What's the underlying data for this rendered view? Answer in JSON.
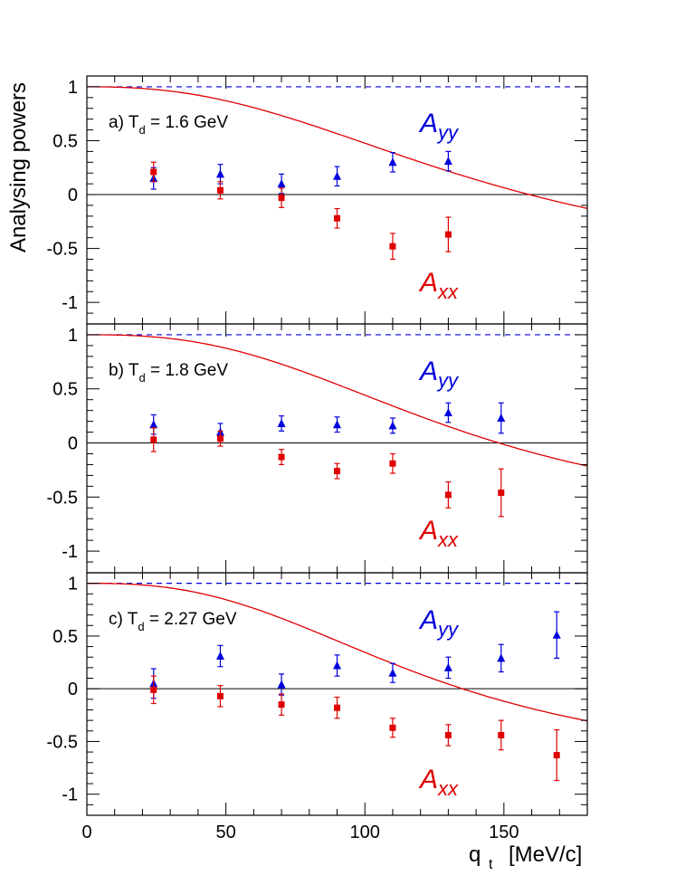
{
  "chart_data": {
    "type": "scatter",
    "xlabel": "q",
    "xlabel_sub": "t",
    "xlabel_unit": "[MeV/c]",
    "ylabel": "Analysing powers",
    "xlim": [
      0,
      180
    ],
    "ylim": [
      -1.2,
      1.1
    ],
    "x_ticks": [
      0,
      50,
      100,
      150
    ],
    "y_ticks": [
      1,
      0.5,
      0,
      -0.5,
      -1
    ],
    "y_tick_labels": [
      "1",
      "0.5",
      "0",
      "-0.5",
      "-1"
    ],
    "colors": {
      "Ayy": "#0000dd",
      "Axx": "#e00000",
      "frame": "#000000"
    },
    "panels": [
      {
        "label_prefix": "a) T",
        "label_sub": "d",
        "label_suffix": " = 1.6 GeV",
        "series": [
          {
            "name": "A",
            "sub": "yy",
            "marker": "triangle",
            "color": "#0000dd",
            "x": [
              24,
              48,
              70,
              90,
              110,
              130
            ],
            "y": [
              0.15,
              0.19,
              0.1,
              0.17,
              0.3,
              0.31
            ],
            "err": [
              0.1,
              0.09,
              0.09,
              0.09,
              0.09,
              0.09
            ]
          },
          {
            "name": "A",
            "sub": "xx",
            "marker": "square",
            "color": "#e00000",
            "x": [
              24,
              48,
              70,
              90,
              110,
              130
            ],
            "y": [
              0.21,
              0.04,
              -0.03,
              -0.22,
              -0.48,
              -0.37
            ],
            "err": [
              0.09,
              0.08,
              0.09,
              0.09,
              0.12,
              0.16
            ]
          }
        ],
        "curve_nominal": {
          "q0": 145,
          "exp": 2.4,
          "color": "#e00000"
        },
        "dashed_line": {
          "y": 1.0,
          "color": "#0000dd"
        }
      },
      {
        "label_prefix": "b) T",
        "label_sub": "d",
        "label_suffix": " = 1.8 GeV",
        "series": [
          {
            "name": "A",
            "sub": "yy",
            "marker": "triangle",
            "color": "#0000dd",
            "x": [
              24,
              48,
              70,
              90,
              110,
              130,
              149
            ],
            "y": [
              0.17,
              0.1,
              0.18,
              0.17,
              0.16,
              0.28,
              0.23
            ],
            "err": [
              0.09,
              0.08,
              0.07,
              0.07,
              0.07,
              0.09,
              0.14
            ]
          },
          {
            "name": "A",
            "sub": "xx",
            "marker": "square",
            "color": "#e00000",
            "x": [
              24,
              48,
              70,
              90,
              110,
              130,
              149
            ],
            "y": [
              0.03,
              0.04,
              -0.13,
              -0.26,
              -0.19,
              -0.48,
              -0.46
            ],
            "err": [
              0.11,
              0.07,
              0.07,
              0.07,
              0.09,
              0.12,
              0.22
            ]
          }
        ],
        "curve_nominal": {
          "q0": 136,
          "exp": 2.6,
          "color": "#e00000"
        },
        "dashed_line": {
          "y": 1.0,
          "color": "#0000dd"
        }
      },
      {
        "label_prefix": "c) T",
        "label_sub": "d",
        "label_suffix": " = 2.27 GeV",
        "series": [
          {
            "name": "A",
            "sub": "yy",
            "marker": "triangle",
            "color": "#0000dd",
            "x": [
              24,
              48,
              70,
              90,
              110,
              130,
              149,
              169
            ],
            "y": [
              0.05,
              0.31,
              0.04,
              0.22,
              0.15,
              0.2,
              0.29,
              0.51
            ],
            "err": [
              0.14,
              0.1,
              0.1,
              0.1,
              0.09,
              0.1,
              0.13,
              0.22
            ]
          },
          {
            "name": "A",
            "sub": "xx",
            "marker": "square",
            "color": "#e00000",
            "x": [
              24,
              48,
              70,
              90,
              110,
              130,
              149,
              169
            ],
            "y": [
              -0.01,
              -0.07,
              -0.15,
              -0.18,
              -0.37,
              -0.44,
              -0.44,
              -0.63
            ],
            "err": [
              0.13,
              0.1,
              0.1,
              0.1,
              0.09,
              0.1,
              0.14,
              0.24
            ]
          }
        ],
        "curve_nominal": {
          "q0": 124,
          "exp": 2.6,
          "color": "#e00000"
        },
        "dashed_line": {
          "y": 1.0,
          "color": "#0000dd"
        }
      }
    ]
  }
}
